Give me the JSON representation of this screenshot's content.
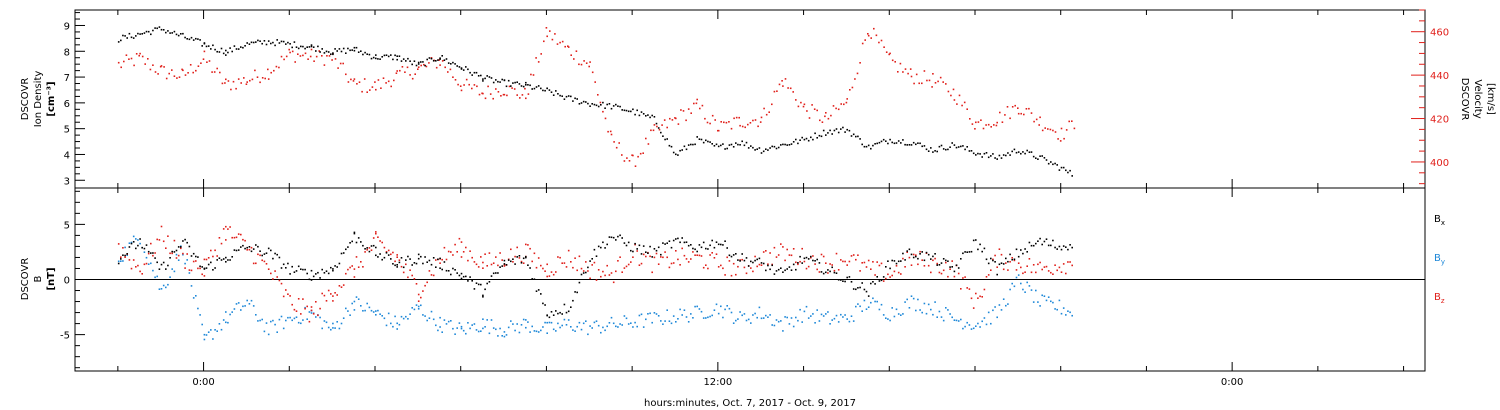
{
  "chart_data": [
    {
      "type": "scatter",
      "panel": "top",
      "ylabel_lines": [
        "DSCOVR",
        "Ion Density",
        "[cm⁻³]"
      ],
      "y2label_lines": [
        "DSCOVR",
        "Velocity",
        "[km/s]"
      ],
      "y_ticks": [
        "3",
        "4",
        "5",
        "6",
        "7",
        "8",
        "9"
      ],
      "y2_ticks": [
        "400",
        "420",
        "440",
        "460"
      ],
      "ylim": [
        2.7,
        9.6
      ],
      "y2lim": [
        388,
        470
      ],
      "series": [
        {
          "color": "#000000",
          "axis": "left",
          "x": [
            -2.0,
            -1.5,
            -1.0,
            -0.5,
            0.0,
            0.5,
            1.0,
            1.5,
            2.0,
            2.5,
            3.0,
            3.5,
            4.0,
            4.5,
            5.0,
            5.5,
            6.0,
            6.5,
            7.0,
            7.5,
            8.0,
            8.5,
            9.0,
            9.5,
            10.0,
            10.5,
            11.0,
            11.5,
            12.0,
            12.5,
            13.0,
            13.5,
            14.0,
            14.5,
            15.0,
            15.5,
            16.0,
            16.5,
            17.0,
            17.5,
            18.0,
            18.5,
            19.0,
            19.5,
            20.0,
            20.3
          ],
          "values": [
            8.5,
            8.7,
            8.9,
            8.6,
            8.3,
            8.0,
            8.3,
            8.4,
            8.3,
            8.2,
            8.0,
            8.1,
            7.8,
            7.8,
            7.5,
            7.8,
            7.4,
            7.0,
            6.8,
            6.7,
            6.5,
            6.2,
            6.0,
            5.9,
            5.7,
            5.4,
            4.0,
            4.6,
            4.3,
            4.5,
            4.2,
            4.4,
            4.6,
            4.9,
            5.0,
            4.3,
            4.6,
            4.5,
            4.2,
            4.4,
            4.1,
            3.9,
            4.2,
            3.9,
            3.5,
            3.2
          ]
        },
        {
          "color": "#e0201b",
          "axis": "right",
          "x": [
            -2.0,
            -1.5,
            -1.0,
            -0.5,
            0.0,
            0.5,
            1.0,
            1.5,
            2.0,
            2.5,
            3.0,
            3.5,
            4.0,
            4.5,
            5.0,
            5.5,
            6.0,
            6.5,
            7.0,
            7.5,
            8.0,
            8.5,
            9.0,
            9.5,
            10.0,
            10.5,
            11.0,
            11.5,
            12.0,
            12.5,
            13.0,
            13.5,
            14.0,
            14.5,
            15.0,
            15.5,
            16.0,
            16.5,
            17.0,
            17.5,
            18.0,
            18.5,
            19.0,
            19.5,
            20.0,
            20.3
          ],
          "values": [
            445,
            448,
            442,
            440,
            448,
            436,
            438,
            442,
            450,
            449,
            448,
            436,
            435,
            440,
            443,
            447,
            436,
            432,
            434,
            431,
            460,
            452,
            445,
            410,
            400,
            414,
            420,
            426,
            416,
            419,
            420,
            438,
            425,
            420,
            428,
            462,
            447,
            440,
            438,
            432,
            418,
            420,
            426,
            419,
            413,
            418
          ]
        }
      ]
    },
    {
      "type": "scatter",
      "panel": "bottom",
      "ylabel_lines": [
        "DSCOVR",
        "B",
        "[nT]"
      ],
      "y_ticks": [
        "-5",
        "0",
        "5"
      ],
      "ylim": [
        -8.3,
        8.3
      ],
      "legend": [
        {
          "base": "B",
          "sub": "x",
          "color": "#000000"
        },
        {
          "base": "B",
          "sub": "y",
          "color": "#1e88d8"
        },
        {
          "base": "B",
          "sub": "z",
          "color": "#e0201b"
        }
      ],
      "series": [
        {
          "name": "Bx",
          "color": "#000000",
          "x": [
            -2.0,
            -1.5,
            -1.0,
            -0.5,
            0.0,
            0.5,
            1.0,
            1.5,
            2.0,
            2.5,
            3.0,
            3.5,
            4.0,
            4.5,
            5.0,
            5.5,
            6.0,
            6.5,
            7.0,
            7.5,
            8.0,
            8.5,
            9.0,
            9.5,
            10.0,
            10.5,
            11.0,
            11.5,
            12.0,
            12.5,
            13.0,
            13.5,
            14.0,
            14.5,
            15.0,
            15.5,
            16.0,
            16.5,
            17.0,
            17.5,
            18.0,
            18.5,
            19.0,
            19.5,
            20.0,
            20.3
          ],
          "values": [
            2.0,
            3.5,
            1.0,
            3.5,
            1.0,
            2.0,
            3.0,
            2.5,
            1.0,
            0.5,
            1.0,
            4.0,
            2.5,
            1.5,
            2.0,
            1.5,
            0.5,
            -1.0,
            1.5,
            2.0,
            -3.0,
            -2.5,
            2.0,
            4.0,
            3.0,
            2.5,
            3.5,
            3.0,
            3.5,
            2.0,
            1.5,
            0.5,
            2.0,
            1.0,
            0.0,
            -1.0,
            1.5,
            2.5,
            2.0,
            1.0,
            3.5,
            1.0,
            2.5,
            3.5,
            3.0,
            3.5
          ]
        },
        {
          "name": "By",
          "color": "#1e88d8",
          "x": [
            -2.0,
            -1.5,
            -1.0,
            -0.5,
            0.0,
            0.5,
            1.0,
            1.5,
            2.0,
            2.5,
            3.0,
            3.5,
            4.0,
            4.5,
            5.0,
            5.5,
            6.0,
            6.5,
            7.0,
            7.5,
            8.0,
            8.5,
            9.0,
            11.5,
            12.0,
            12.5,
            13.0,
            13.5,
            14.0,
            14.5,
            15.0,
            15.5,
            16.0,
            16.5,
            17.0,
            17.5,
            18.0,
            18.5,
            19.0,
            19.5,
            20.0,
            20.3
          ],
          "values": [
            2.0,
            4.0,
            -1.0,
            3.0,
            -5.5,
            -3.5,
            -2.0,
            -4.5,
            -3.5,
            -3.0,
            -4.5,
            -2.0,
            -3.0,
            -4.0,
            -2.5,
            -4.0,
            -4.5,
            -4.0,
            -4.5,
            -4.0,
            -4.5,
            -4.0,
            -4.3,
            -3.0,
            -2.5,
            -3.5,
            -3.0,
            -4.0,
            -3.0,
            -3.5,
            -3.5,
            -2.0,
            -3.0,
            -2.0,
            -2.5,
            -3.5,
            -4.0,
            -3.0,
            0.0,
            -2.0,
            -2.5,
            -3.0
          ]
        },
        {
          "name": "Bz",
          "color": "#e0201b",
          "x": [
            -2.0,
            -1.5,
            -1.0,
            -0.5,
            0.0,
            0.5,
            1.0,
            1.5,
            2.0,
            2.5,
            3.0,
            3.5,
            4.0,
            4.5,
            5.0,
            5.5,
            6.0,
            6.5,
            7.0,
            7.5,
            8.0,
            8.5,
            9.0,
            9.5,
            10.0,
            10.5,
            11.0,
            11.5,
            12.0,
            12.5,
            13.0,
            13.5,
            14.0,
            14.5,
            15.0,
            15.5,
            16.0,
            16.5,
            17.0,
            17.5,
            18.0,
            18.5,
            19.0,
            19.5,
            20.0,
            20.3
          ],
          "values": [
            3.0,
            1.0,
            4.0,
            2.0,
            1.0,
            4.5,
            3.0,
            1.0,
            -2.0,
            -3.0,
            -1.0,
            1.0,
            3.5,
            2.0,
            -1.0,
            2.0,
            3.0,
            1.5,
            2.0,
            2.5,
            1.0,
            2.0,
            1.0,
            0.5,
            2.5,
            1.5,
            2.0,
            2.0,
            1.5,
            1.0,
            2.0,
            2.5,
            2.0,
            1.5,
            2.0,
            1.0,
            0.5,
            2.0,
            1.5,
            1.0,
            -2.0,
            2.0,
            1.5,
            1.0,
            1.5,
            1.5
          ]
        }
      ]
    }
  ],
  "x_axis": {
    "xlim": [
      -3.0,
      28.5
    ],
    "xlabel": "hours:minutes, Oct.  7, 2017 - Oct.  9, 2017",
    "ticks": [
      {
        "x": 0,
        "label": "0:00"
      },
      {
        "x": 12,
        "label": "12:00"
      },
      {
        "x": 24,
        "label": "0:00"
      }
    ],
    "minor_step": 2
  }
}
